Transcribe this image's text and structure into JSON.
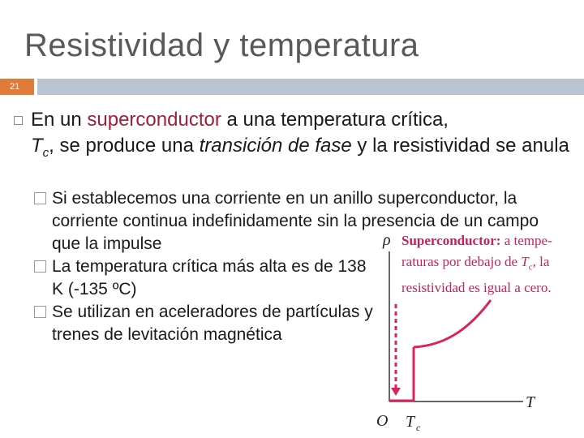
{
  "slide": {
    "title": "Resistividad y temperatura",
    "number": "21"
  },
  "main_bullet": {
    "part1": "En un ",
    "highlight": "superconductor",
    "part2": " a una temperatura crítica,",
    "tc_symbol": "T",
    "tc_sub": "c",
    "part3": ", se produce una ",
    "italic_phrase": "transición de fase",
    "part4": " y la resistividad se anula"
  },
  "sub_bullets": [
    {
      "text": "Si establecemos una corriente en un anillo superconductor, la corriente continua indefinidamente sin la presencia de un campo que la impulse"
    },
    {
      "text": "La temperatura crítica más alta es de 138 K (-135 ºC)"
    },
    {
      "text": "Se utilizan en aceleradores de partículas y trenes de levitación magnética"
    }
  ],
  "figure": {
    "caption_bold": "Superconductor:",
    "caption_1": " a tempe- raturas por debajo de ",
    "caption_T": "T",
    "caption_sub": "c",
    "caption_2": ", la resistividad es igual a cero.",
    "y_label": "ρ",
    "x_label": "T",
    "origin_label": "O",
    "tc_label": "T",
    "tc_label_sub": "c",
    "curve_color": "#d8245a",
    "arrow_color": "#d8245a"
  }
}
